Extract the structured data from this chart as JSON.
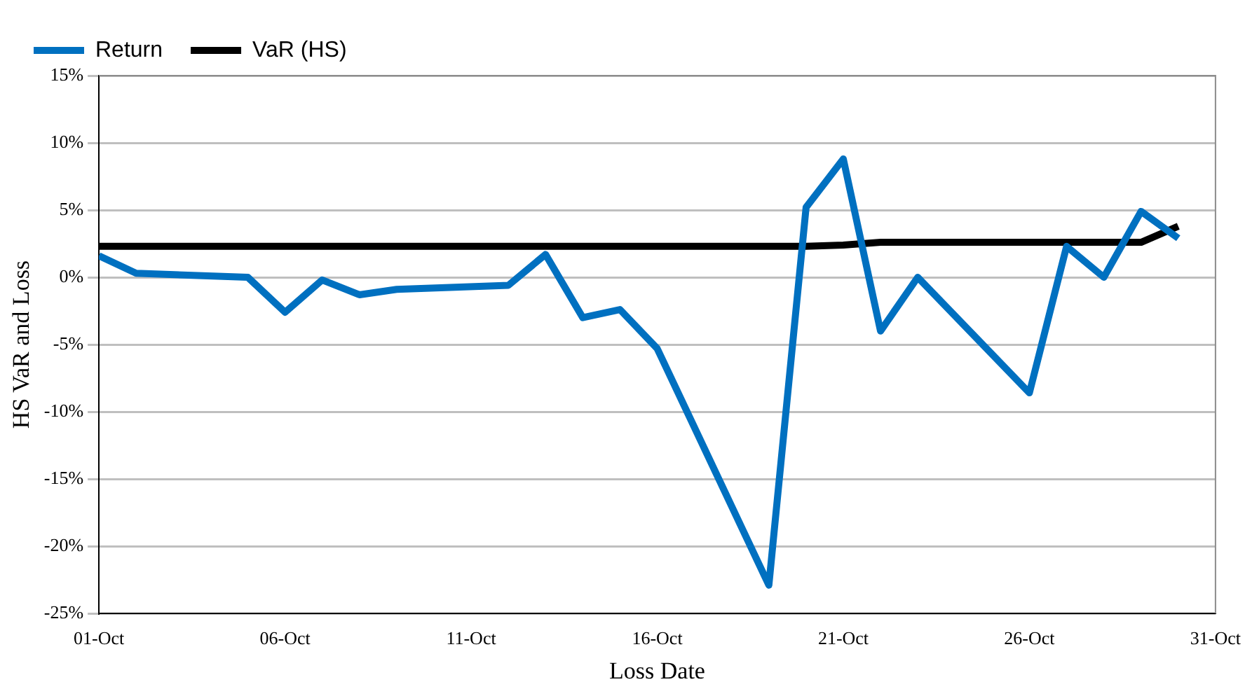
{
  "chart_data": {
    "type": "line",
    "xlabel": "Loss Date",
    "ylabel": "HS VaR and Loss",
    "x": [
      "--10-01",
      "--10-02",
      "--10-05",
      "--10-06",
      "--10-07",
      "--10-08",
      "--10-09",
      "--10-12",
      "--10-13",
      "--10-14",
      "--10-15",
      "--10-16",
      "--10-19",
      "--10-20",
      "--10-21",
      "--10-22",
      "--10-23",
      "--10-26",
      "--10-27",
      "--10-28",
      "--10-29",
      "--10-30"
    ],
    "series": [
      {
        "name": "Return",
        "color": "#0070c0",
        "values": [
          1.6,
          0.3,
          0.0,
          -2.6,
          -0.2,
          -1.3,
          -0.9,
          -0.6,
          1.7,
          -3.0,
          -2.4,
          -5.3,
          -22.9,
          5.2,
          8.8,
          -4.0,
          0.0,
          -8.6,
          2.3,
          0.0,
          4.9,
          2.9
        ]
      },
      {
        "name": "VaR (HS)",
        "color": "#000000",
        "values": [
          2.3,
          2.3,
          2.3,
          2.3,
          2.3,
          2.3,
          2.3,
          2.3,
          2.3,
          2.3,
          2.3,
          2.3,
          2.3,
          2.3,
          2.4,
          2.6,
          2.6,
          2.6,
          2.6,
          2.6,
          2.6,
          3.8
        ]
      }
    ],
    "xlim": [
      "--10-01",
      "--10-31"
    ],
    "xticks": [
      {
        "value": "--10-01",
        "label": "01-Oct"
      },
      {
        "value": "--10-06",
        "label": "06-Oct"
      },
      {
        "value": "--10-11",
        "label": "11-Oct"
      },
      {
        "value": "--10-16",
        "label": "16-Oct"
      },
      {
        "value": "--10-21",
        "label": "21-Oct"
      },
      {
        "value": "--10-26",
        "label": "26-Oct"
      },
      {
        "value": "--10-31",
        "label": "31-Oct"
      }
    ],
    "ylim": [
      -25,
      15
    ],
    "yticks": [
      {
        "value": -25,
        "label": "-25%"
      },
      {
        "value": -20,
        "label": "-20%"
      },
      {
        "value": -15,
        "label": "-15%"
      },
      {
        "value": -10,
        "label": "-10%"
      },
      {
        "value": -5,
        "label": "-5%"
      },
      {
        "value": 0,
        "label": "0%"
      },
      {
        "value": 5,
        "label": "5%"
      },
      {
        "value": 10,
        "label": "10%"
      },
      {
        "value": 15,
        "label": "15%"
      }
    ],
    "grid": "y",
    "legend": "top left",
    "marker": "none",
    "line_style": "solid"
  }
}
